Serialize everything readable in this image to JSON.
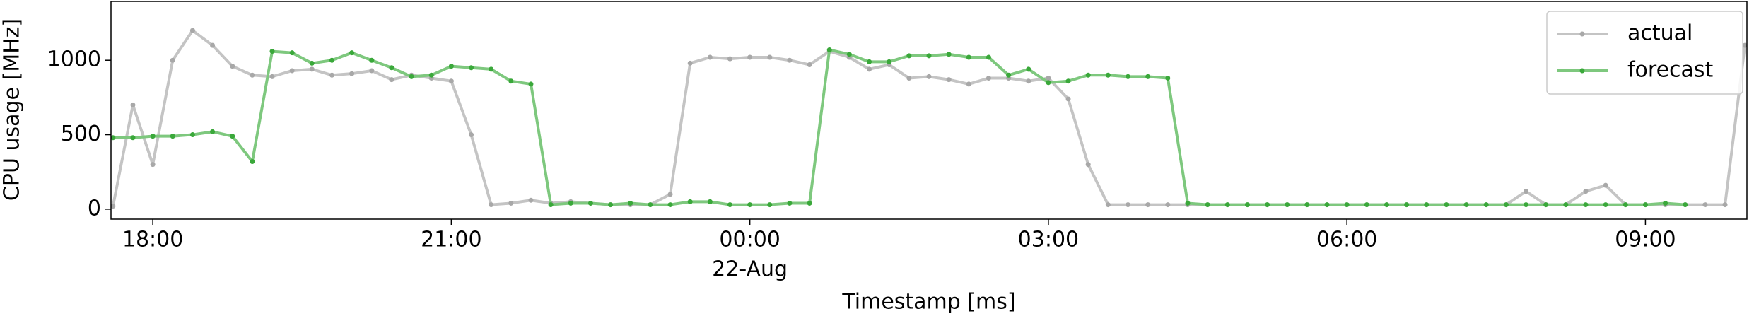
{
  "chart_data": {
    "type": "line",
    "xlabel": "Timestamp [ms]",
    "ylabel": "CPU usage [MHz]",
    "x_date": "22-Aug",
    "x": [
      -6.4,
      -6.2,
      -6,
      -5.8,
      -5.6,
      -5.4,
      -5.2,
      -5,
      -4.8,
      -4.6,
      -4.4,
      -4.2,
      -4,
      -3.8,
      -3.6,
      -3.4,
      -3.2,
      -3,
      -2.8,
      -2.6,
      -2.4,
      -2.2,
      -2,
      -1.8,
      -1.6,
      -1.4,
      -1.2,
      -1,
      -0.8,
      -0.6,
      -0.4,
      -0.2,
      0,
      0.2,
      0.4,
      0.6,
      0.8,
      1,
      1.2,
      1.4,
      1.6,
      1.8,
      2,
      2.2,
      2.4,
      2.6,
      2.8,
      3,
      3.2,
      3.4,
      3.6,
      3.8,
      4,
      4.2,
      4.4,
      4.6,
      4.8,
      5,
      5.2,
      5.4,
      5.6,
      5.8,
      6,
      6.2,
      6.4,
      6.6,
      6.8,
      7,
      7.2,
      7.4,
      7.6,
      7.8,
      8,
      8.2,
      8.4,
      8.6,
      8.8,
      9,
      9.2,
      9.4,
      9.6,
      9.8,
      10
    ],
    "series": [
      {
        "name": "actual",
        "color": "#c4c4c4",
        "marker_color": "#a8a8a8",
        "values": [
          20,
          700,
          300,
          1000,
          1200,
          1100,
          960,
          900,
          890,
          930,
          940,
          900,
          910,
          930,
          870,
          900,
          880,
          860,
          500,
          30,
          40,
          60,
          40,
          50,
          40,
          30,
          30,
          30,
          100,
          980,
          1020,
          1010,
          1020,
          1020,
          1000,
          970,
          1060,
          1020,
          940,
          970,
          880,
          890,
          870,
          840,
          880,
          880,
          860,
          880,
          740,
          300,
          30,
          30,
          30,
          30,
          30,
          30,
          30,
          30,
          30,
          30,
          30,
          30,
          30,
          30,
          30,
          30,
          30,
          30,
          30,
          30,
          30,
          120,
          30,
          30,
          120,
          160,
          30,
          30,
          30,
          30,
          30,
          30,
          1100
        ]
      },
      {
        "name": "forecast",
        "color": "#7ec87e",
        "marker_color": "#3aa83a",
        "values": [
          480,
          480,
          490,
          490,
          500,
          520,
          490,
          320,
          1060,
          1050,
          980,
          1000,
          1050,
          1000,
          950,
          890,
          900,
          960,
          950,
          940,
          860,
          840,
          30,
          40,
          40,
          30,
          40,
          30,
          30,
          50,
          50,
          30,
          30,
          30,
          40,
          40,
          1070,
          1040,
          990,
          990,
          1030,
          1030,
          1040,
          1020,
          1020,
          900,
          940,
          850,
          860,
          900,
          900,
          890,
          890,
          880,
          40,
          30,
          30,
          30,
          30,
          30,
          30,
          30,
          30,
          30,
          30,
          30,
          30,
          30,
          30,
          30,
          30,
          30,
          30,
          30,
          30,
          30,
          30,
          30,
          40,
          30,
          null,
          null,
          null
        ]
      }
    ],
    "xlim": [
      -6.42,
      10.02
    ],
    "xticks": [
      {
        "value": -6,
        "label": "18:00"
      },
      {
        "value": -3,
        "label": "21:00"
      },
      {
        "value": 0,
        "label": "00:00"
      },
      {
        "value": 3,
        "label": "03:00"
      },
      {
        "value": 6,
        "label": "06:00"
      },
      {
        "value": 9,
        "label": "09:00"
      }
    ],
    "ylim": [
      -67,
      1395
    ],
    "yticks": [
      0,
      500,
      1000
    ],
    "grid": false,
    "legend": "upper right"
  }
}
